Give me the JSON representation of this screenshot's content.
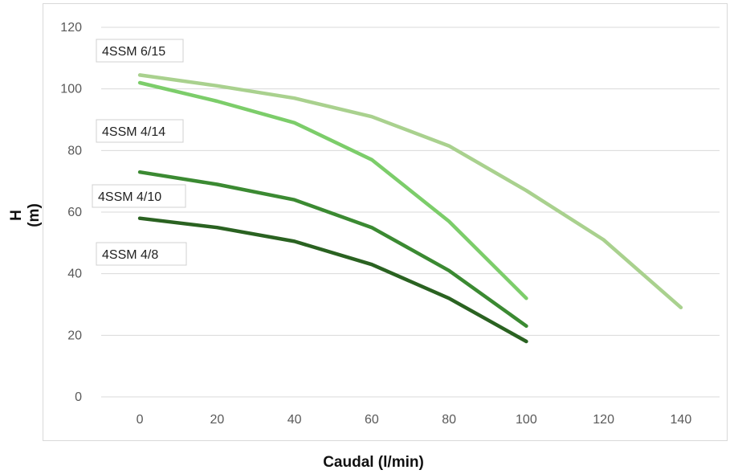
{
  "chart_data": {
    "type": "line",
    "title": "",
    "xlabel": "Caudal (l/min)",
    "ylabel": "H (m)",
    "xlim": [
      -10,
      150
    ],
    "ylim": [
      0,
      120
    ],
    "x_ticks": [
      "0",
      "20",
      "40",
      "60",
      "80",
      "100",
      "120",
      "140"
    ],
    "y_ticks": [
      "0",
      "20",
      "40",
      "60",
      "80",
      "100",
      "120"
    ],
    "grid": "horizontal",
    "series": [
      {
        "name": "4SSM 6/15",
        "color": "#a9d18e",
        "x": [
          0,
          20,
          40,
          60,
          80,
          100,
          120,
          140
        ],
        "y": [
          104.5,
          101,
          97,
          91,
          81.5,
          67,
          51,
          29
        ]
      },
      {
        "name": "4SSM 4/14",
        "color": "#7ccd6a",
        "x": [
          0,
          20,
          40,
          60,
          80,
          100
        ],
        "y": [
          102,
          96,
          89,
          77,
          57,
          32
        ]
      },
      {
        "name": "4SSM 4/10",
        "color": "#3b8a32",
        "x": [
          0,
          20,
          40,
          60,
          80,
          100
        ],
        "y": [
          73,
          69,
          64,
          55,
          41,
          23
        ]
      },
      {
        "name": "4SSM 4/8",
        "color": "#2a6221",
        "x": [
          0,
          20,
          40,
          60,
          80,
          100
        ],
        "y": [
          58,
          55,
          50.5,
          43,
          32,
          18
        ]
      }
    ]
  }
}
